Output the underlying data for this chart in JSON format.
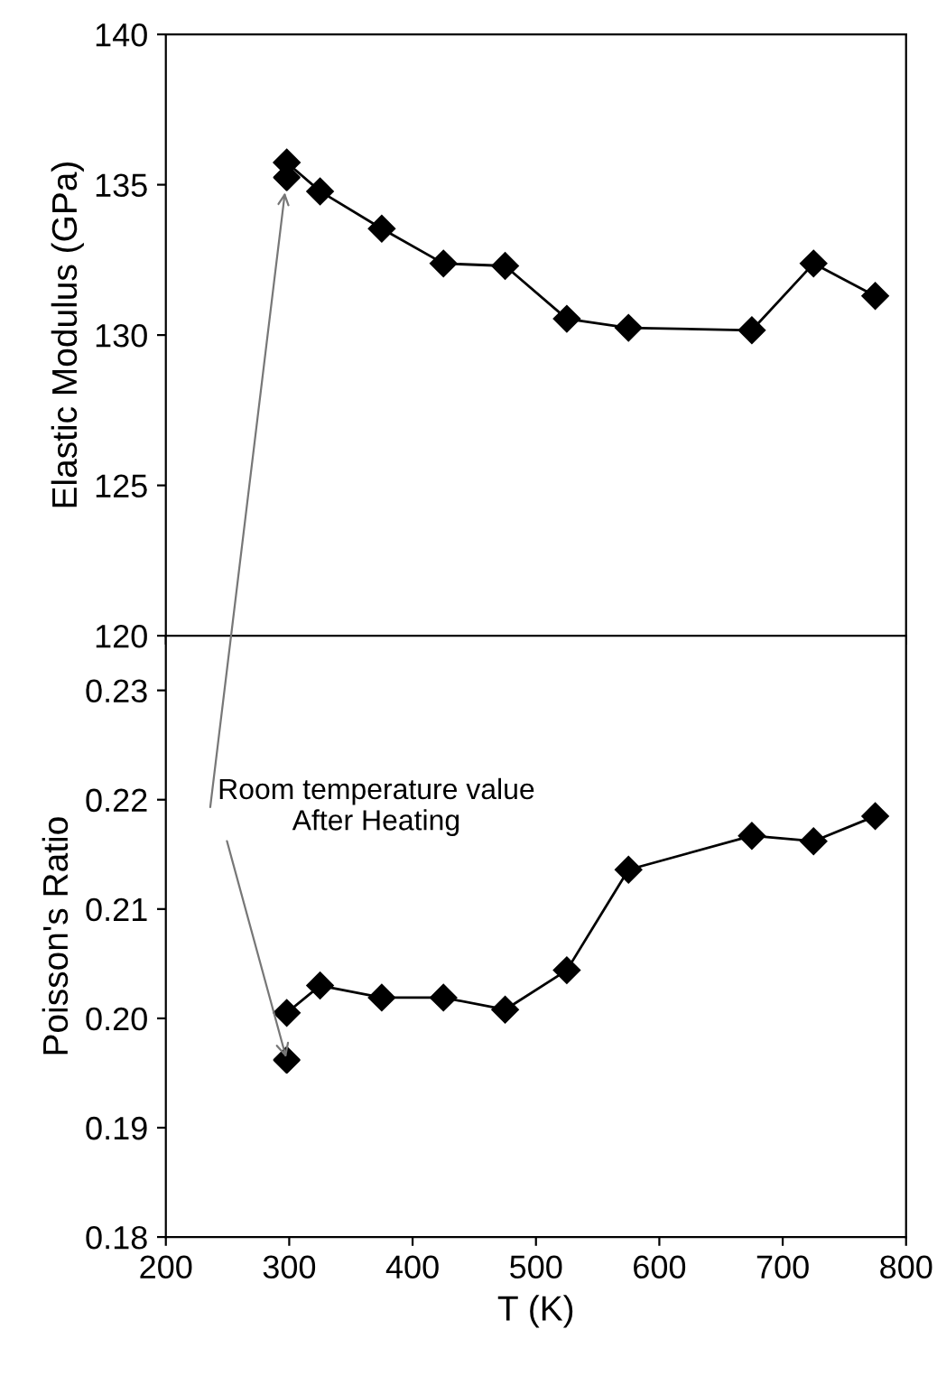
{
  "chart_data": [
    {
      "type": "line",
      "ylabel": "Elastic Modulus (GPa)",
      "xlim": [
        200,
        800
      ],
      "xticks": [
        200,
        300,
        400,
        500,
        600,
        700,
        800
      ],
      "ylim": [
        120,
        140
      ],
      "yticks": [
        120,
        125,
        130,
        135,
        140
      ],
      "tick_labels": "y",
      "marker": "diamond",
      "line_style": "solid",
      "series": [
        {
          "color": "#000000",
          "x": [
            298,
            325,
            375,
            425,
            475,
            525,
            575,
            675,
            725,
            775
          ],
          "values": [
            135.74,
            134.78,
            133.54,
            132.38,
            132.3,
            130.54,
            130.24,
            130.16,
            132.38,
            131.3
          ]
        },
        {
          "type": "scatter",
          "color": "#000000",
          "x": [
            298
          ],
          "values": [
            135.24
          ]
        }
      ]
    },
    {
      "type": "line",
      "xlabel": "T (K)",
      "ylabel": "Poisson's Ratio",
      "xlim": [
        200,
        800
      ],
      "xticks": [
        200,
        300,
        400,
        500,
        600,
        700,
        800
      ],
      "ylim": [
        0.18,
        0.235
      ],
      "yticks": [
        0.18,
        0.19,
        {
          "value": 0.2,
          "label": "0.20"
        },
        0.21,
        0.22,
        0.23
      ],
      "marker": "diamond",
      "line_style": "solid",
      "annotations": [
        {
          "text": "Room temperature value\nAfter Heating",
          "x": 298,
          "y": 0.1962
        }
      ],
      "series": [
        {
          "color": "#000000",
          "x": [
            298,
            325,
            375,
            425,
            475,
            525,
            575,
            675,
            725,
            775
          ],
          "values": [
            0.2005,
            0.203,
            0.2019,
            0.2019,
            0.2008,
            0.2044,
            0.2136,
            0.2167,
            0.2162,
            0.2185
          ]
        },
        {
          "type": "scatter",
          "color": "#000000",
          "x": [
            298
          ],
          "values": [
            0.1962
          ]
        }
      ]
    }
  ]
}
